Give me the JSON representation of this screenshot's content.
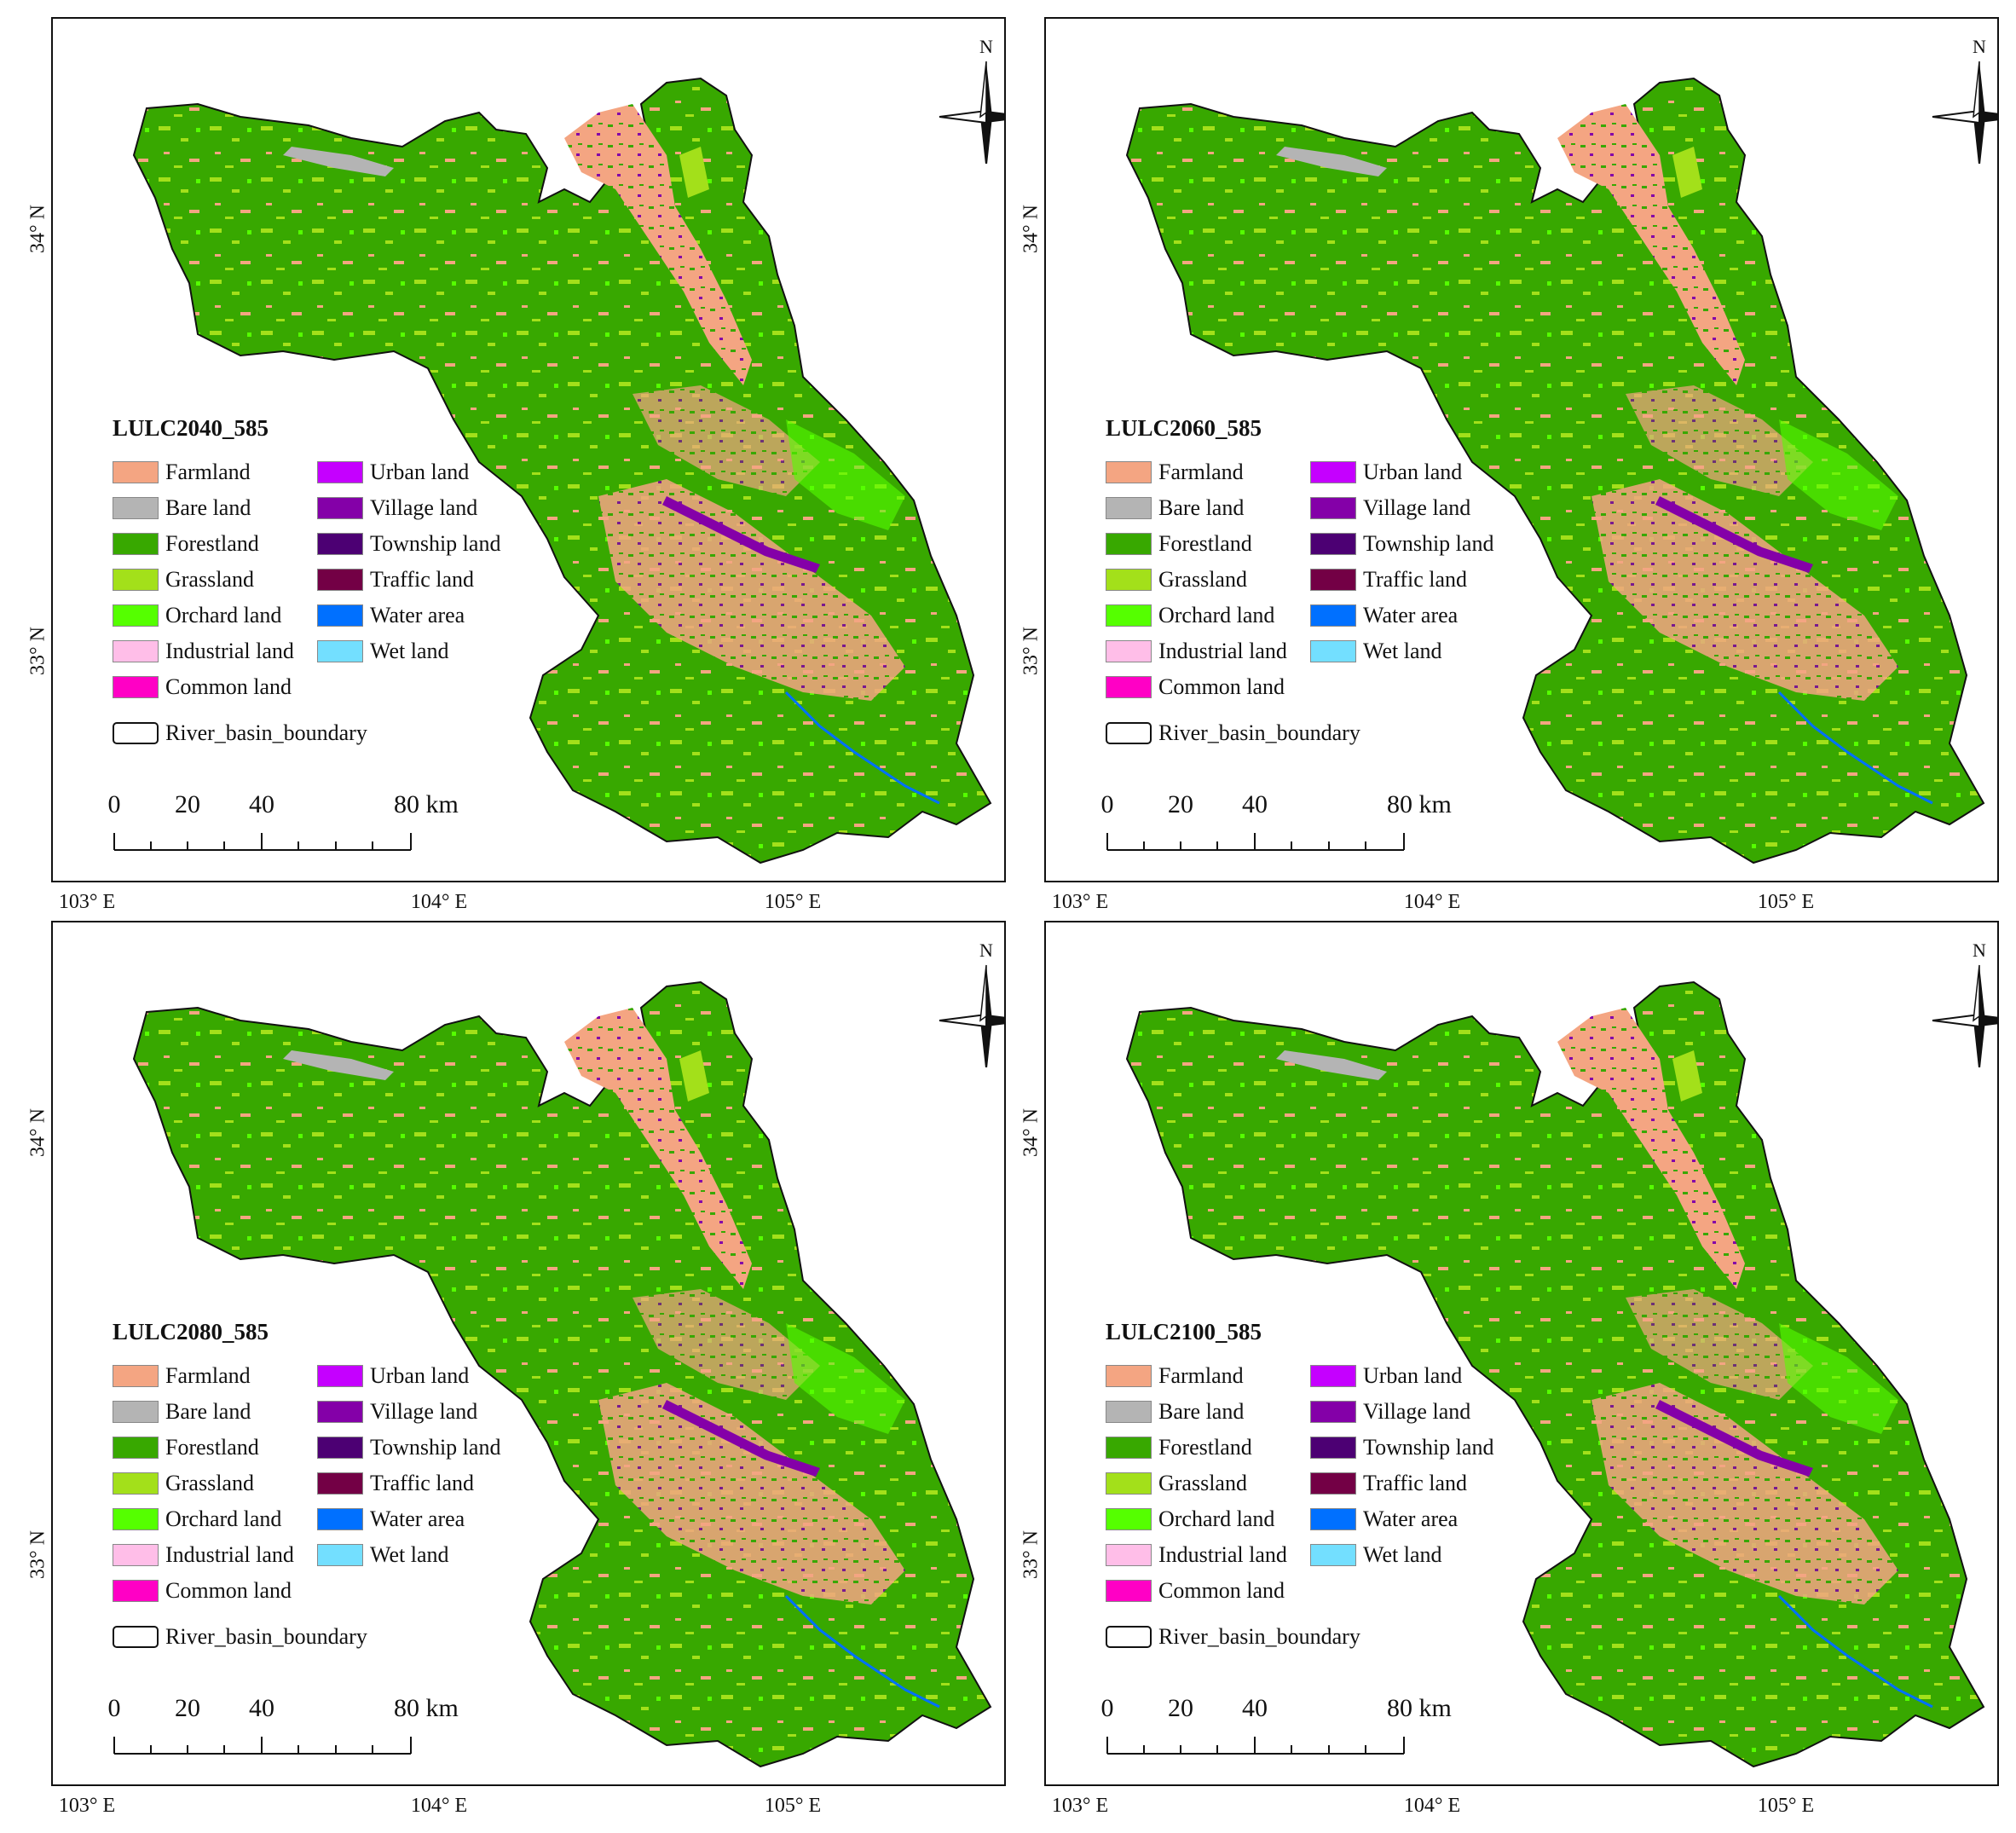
{
  "panels": [
    {
      "title": "LULC2040_585"
    },
    {
      "title": "LULC2060_585"
    },
    {
      "title": "LULC2080_585"
    },
    {
      "title": "LULC2100_585"
    }
  ],
  "legend": {
    "left_items": [
      {
        "label": "Farmland",
        "color": "#f4a582"
      },
      {
        "label": "Bare land",
        "color": "#b4b4b4"
      },
      {
        "label": "Forestland",
        "color": "#38a800"
      },
      {
        "label": "Grassland",
        "color": "#a3e01a"
      },
      {
        "label": "Orchard land",
        "color": "#55ff00"
      },
      {
        "label": "Industrial land",
        "color": "#ffbee8"
      },
      {
        "label": "Common land",
        "color": "#ff00c5"
      }
    ],
    "right_items": [
      {
        "label": "Urban land",
        "color": "#c500ff"
      },
      {
        "label": "Village land",
        "color": "#8400a8"
      },
      {
        "label": "Township land",
        "color": "#4c0073"
      },
      {
        "label": "Traffic land",
        "color": "#730045"
      },
      {
        "label": "Water area",
        "color": "#0070ff"
      },
      {
        "label": "Wet land",
        "color": "#73dfff"
      }
    ],
    "boundary_label": "River_basin_boundary"
  },
  "scalebar": {
    "ticks": [
      "0",
      "20",
      "40"
    ],
    "end": "80 km"
  },
  "north": "N",
  "lat_labels": [
    "34° N",
    "33° N"
  ],
  "lon_labels": [
    "103° E",
    "104° E",
    "105° E"
  ]
}
